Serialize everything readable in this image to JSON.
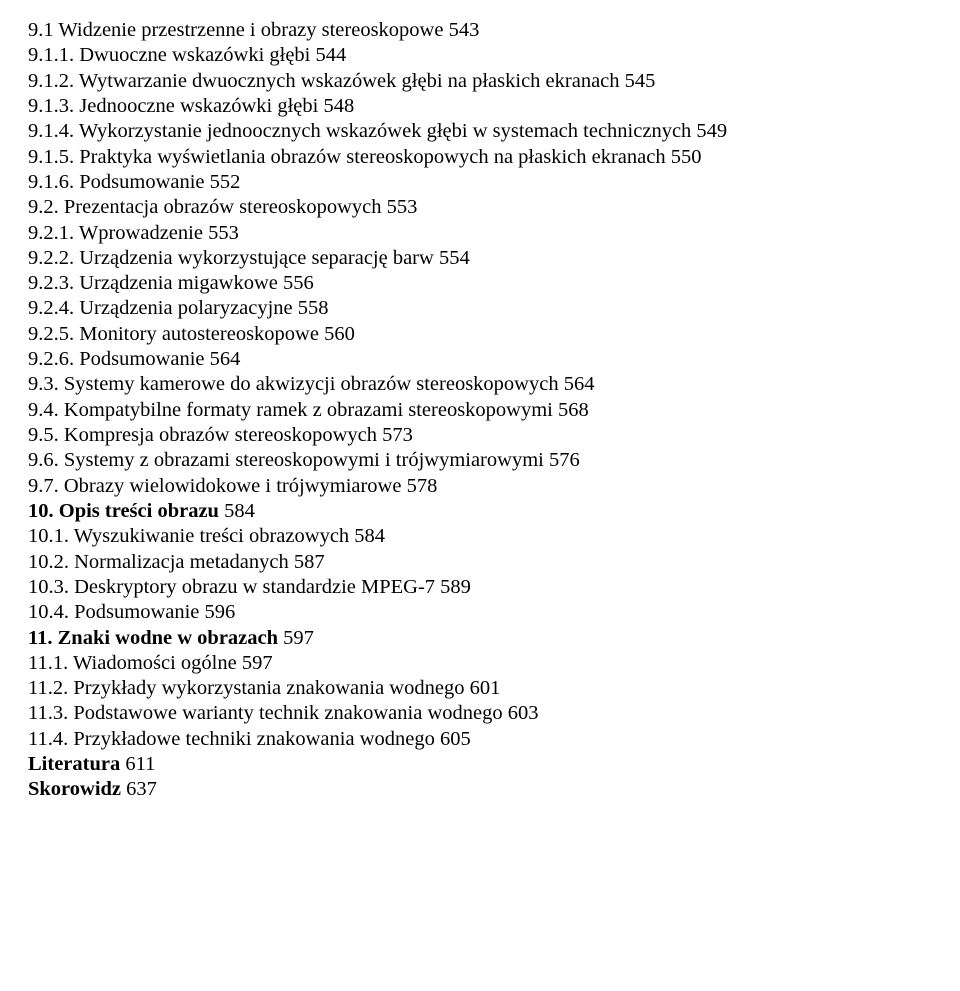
{
  "typography": {
    "font_family": "Times New Roman",
    "font_size_pt": 15,
    "line_height": 1.235,
    "color": "#000000",
    "background": "#ffffff"
  },
  "lines": [
    {
      "text": "9.1 Widzenie przestrzenne i obrazy stereoskopowe 543",
      "bold": false
    },
    {
      "text": "9.1.1. Dwuoczne wskazówki głębi 544",
      "bold": false
    },
    {
      "text": "9.1.2. Wytwarzanie dwuocznych wskazówek głębi na płaskich ekranach 545",
      "bold": false
    },
    {
      "text": "9.1.3. Jednooczne wskazówki głębi 548",
      "bold": false
    },
    {
      "text": "9.1.4. Wykorzystanie jednoocznych wskazówek głębi w systemach technicznych 549",
      "bold": false
    },
    {
      "text": "9.1.5. Praktyka wyświetlania obrazów stereoskopowych na płaskich ekranach 550",
      "bold": false
    },
    {
      "text": "9.1.6. Podsumowanie 552",
      "bold": false
    },
    {
      "text": "9.2. Prezentacja obrazów stereoskopowych 553",
      "bold": false
    },
    {
      "text": "9.2.1. Wprowadzenie 553",
      "bold": false
    },
    {
      "text": "9.2.2. Urządzenia wykorzystujące separację barw 554",
      "bold": false
    },
    {
      "text": "9.2.3. Urządzenia migawkowe 556",
      "bold": false
    },
    {
      "text": "9.2.4. Urządzenia polaryzacyjne 558",
      "bold": false
    },
    {
      "text": "9.2.5. Monitory autostereoskopowe 560",
      "bold": false
    },
    {
      "text": "9.2.6. Podsumowanie 564",
      "bold": false
    },
    {
      "text": "9.3. Systemy kamerowe do akwizycji obrazów stereoskopowych 564",
      "bold": false
    },
    {
      "text": "9.4. Kompatybilne formaty ramek z obrazami stereoskopowymi 568",
      "bold": false
    },
    {
      "text": "9.5. Kompresja obrazów stereoskopowych 573",
      "bold": false
    },
    {
      "text": "9.6. Systemy z obrazami stereoskopowymi i trójwymiarowymi 576",
      "bold": false
    },
    {
      "text": "9.7. Obrazy wielowidokowe i trójwymiarowe 578",
      "bold": false
    },
    {
      "text": "10. Opis treści obrazu",
      "bold": true,
      "tail": " 584"
    },
    {
      "text": "10.1. Wyszukiwanie treści obrazowych 584",
      "bold": false
    },
    {
      "text": "10.2. Normalizacja metadanych 587",
      "bold": false
    },
    {
      "text": "10.3. Deskryptory obrazu w standardzie MPEG-7 589",
      "bold": false
    },
    {
      "text": "10.4. Podsumowanie 596",
      "bold": false
    },
    {
      "text": "11. Znaki wodne w obrazach",
      "bold": true,
      "tail": " 597"
    },
    {
      "text": "11.1. Wiadomości ogólne 597",
      "bold": false
    },
    {
      "text": "11.2. Przykłady wykorzystania znakowania wodnego 601",
      "bold": false
    },
    {
      "text": "11.3. Podstawowe warianty technik znakowania wodnego 603",
      "bold": false
    },
    {
      "text": "11.4. Przykładowe techniki znakowania wodnego 605",
      "bold": false
    },
    {
      "text": "Literatura",
      "bold": true,
      "tail": " 611"
    },
    {
      "text": "Skorowidz",
      "bold": true,
      "tail": " 637"
    }
  ]
}
